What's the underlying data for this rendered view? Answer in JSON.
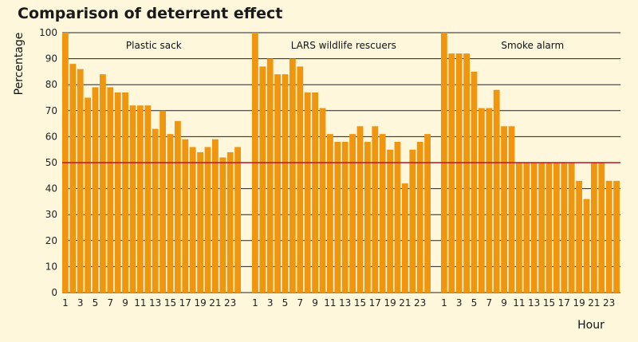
{
  "chart_data": {
    "type": "bar",
    "title": "Comparison of deterrent effect",
    "xlabel": "Hour",
    "ylabel": "Percentage",
    "ylim": [
      0,
      100
    ],
    "yticks": [
      0,
      10,
      20,
      30,
      40,
      50,
      60,
      70,
      80,
      90,
      100
    ],
    "grid": true,
    "reference_line": {
      "y": 50,
      "color": "#c0102a"
    },
    "bar_color": "#f0960e",
    "x_tick_labels": [
      "1",
      "3",
      "5",
      "7",
      "9",
      "11",
      "13",
      "15",
      "17",
      "19",
      "21",
      "23"
    ],
    "categories": [
      "1",
      "2",
      "3",
      "4",
      "5",
      "6",
      "7",
      "8",
      "9",
      "10",
      "11",
      "12",
      "13",
      "14",
      "15",
      "16",
      "17",
      "18",
      "19",
      "20",
      "21",
      "22",
      "23",
      "24"
    ],
    "series": [
      {
        "name": "Plastic sack",
        "values": [
          100,
          88,
          86,
          75,
          79,
          84,
          79,
          77,
          77,
          72,
          72,
          72,
          63,
          70,
          61,
          66,
          59,
          56,
          54,
          56,
          59,
          52,
          54,
          56
        ]
      },
      {
        "name": "LARS wildlife rescuers",
        "values": [
          100,
          87,
          90,
          84,
          84,
          90,
          87,
          77,
          77,
          71,
          61,
          58,
          58,
          61,
          64,
          58,
          64,
          61,
          55,
          58,
          42,
          55,
          58,
          61
        ]
      },
      {
        "name": "Smoke alarm",
        "values": [
          100,
          92,
          92,
          92,
          85,
          71,
          71,
          78,
          64,
          64,
          50,
          50,
          50,
          50,
          50,
          50,
          50,
          50,
          43,
          36,
          50,
          50,
          43,
          43
        ]
      }
    ]
  }
}
